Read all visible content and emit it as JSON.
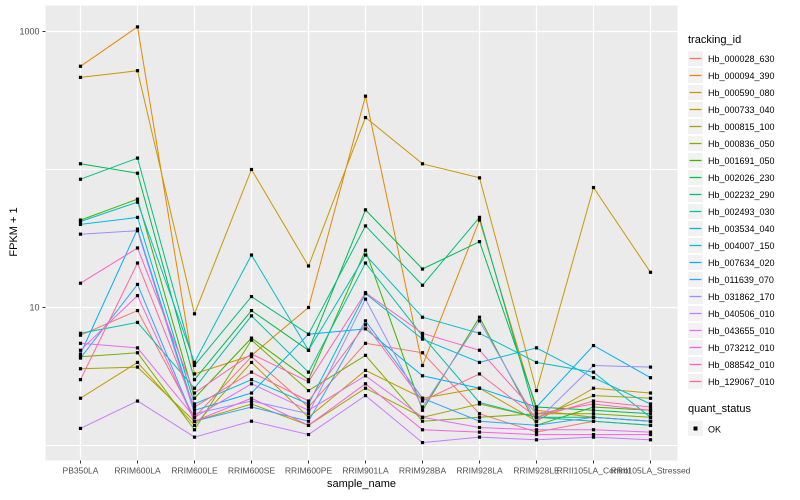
{
  "chart_data": {
    "type": "line",
    "title": "",
    "xlabel": "sample_name",
    "ylabel": "FPKM + 1",
    "y_scale": "log10",
    "ylim": [
      0.75,
      1600
    ],
    "y_major_ticks": [
      {
        "label": "1000",
        "value": 1000
      },
      {
        "label": "10",
        "value": 10
      }
    ],
    "y_unlabeled_gridlines": [
      100,
      1
    ],
    "grid": true,
    "legend_position": "right",
    "legend_title": "tracking_id",
    "quant_legend": {
      "title": "quant_status",
      "entries": [
        {
          "label": "OK",
          "marker": "black-square"
        }
      ]
    },
    "point_marker": "black-square",
    "categories": [
      "PB350LA",
      "RRIM600LA",
      "RRIM600LE",
      "RRIM600SE",
      "RRIM600PE",
      "RRIM901LA",
      "RRIM928BA",
      "RRIM928LA",
      "RRIM928LE",
      "RRII105LA_Control",
      "RRII105LA_Stressed"
    ],
    "series": [
      {
        "name": "Hb_000028_630",
        "color": "#F8766D",
        "values": [
          6.3,
          9.5,
          1.6,
          4.4,
          1.9,
          5.5,
          4.7,
          1.7,
          1.25,
          1.5,
          1.4
        ]
      },
      {
        "name": "Hb_000094_390",
        "color": "#E58700",
        "values": [
          560,
          1080,
          3.3,
          4.5,
          10,
          340,
          3.8,
          43,
          1.8,
          1.6,
          1.5
        ]
      },
      {
        "name": "Hb_000590_080",
        "color": "#C99800",
        "values": [
          465,
          520,
          9.0,
          100,
          20,
          238,
          110,
          87,
          2.5,
          74,
          18
        ]
      },
      {
        "name": "Hb_000733_040",
        "color": "#C09B00",
        "values": [
          2.2,
          4.0,
          1.4,
          4.0,
          1.6,
          3.5,
          2.2,
          2.6,
          1.5,
          2.6,
          2.4
        ]
      },
      {
        "name": "Hb_000815_100",
        "color": "#A3A500",
        "values": [
          3.6,
          3.7,
          1.5,
          2.0,
          1.4,
          2.6,
          1.6,
          2.0,
          1.6,
          2.3,
          2.2
        ]
      },
      {
        "name": "Hb_000836_050",
        "color": "#7CAE00",
        "values": [
          4.4,
          4.7,
          1.3,
          5.8,
          2.5,
          4.5,
          1.5,
          1.6,
          1.7,
          1.7,
          1.6
        ]
      },
      {
        "name": "Hb_001691_050",
        "color": "#39B600",
        "values": [
          43,
          61,
          2.2,
          6.0,
          3.0,
          26,
          1.8,
          8.5,
          1.4,
          1.9,
          1.8
        ]
      },
      {
        "name": "Hb_002026_230",
        "color": "#00BB4E",
        "values": [
          110,
          94,
          3.0,
          9.5,
          4.9,
          51,
          19,
          30,
          1.9,
          1.8,
          1.7
        ]
      },
      {
        "name": "Hb_002232_290",
        "color": "#00BF7D",
        "values": [
          85,
          121,
          3.8,
          12,
          6.4,
          39,
          14.5,
          45,
          1.6,
          1.6,
          1.5
        ]
      },
      {
        "name": "Hb_002493_030",
        "color": "#00C1A3",
        "values": [
          6.5,
          7.8,
          2.6,
          8.7,
          3.4,
          21,
          6.2,
          2.05,
          1.6,
          1.5,
          1.4
        ]
      },
      {
        "name": "Hb_003534_040",
        "color": "#00BFC4",
        "values": [
          42,
          58,
          4.0,
          24,
          4.9,
          24,
          8.5,
          6.5,
          4.0,
          3.4,
          1.6
        ]
      },
      {
        "name": "Hb_004007_150",
        "color": "#00BAE0",
        "values": [
          40,
          45,
          2.0,
          3.0,
          2.0,
          12.6,
          5.9,
          4.0,
          5.1,
          3.1,
          2.0
        ]
      },
      {
        "name": "Hb_007634_020",
        "color": "#00B0F6",
        "values": [
          4.6,
          37,
          1.8,
          2.4,
          6.4,
          7.0,
          3.2,
          2.6,
          1.9,
          5.3,
          3.1
        ]
      },
      {
        "name": "Hb_011639_070",
        "color": "#35A2FF",
        "values": [
          4.3,
          14.7,
          1.5,
          1.9,
          1.5,
          8.0,
          2.2,
          1.5,
          1.4,
          1.6,
          1.5
        ]
      },
      {
        "name": "Hb_031862_170",
        "color": "#9590FF",
        "values": [
          34,
          36,
          1.7,
          2.1,
          1.7,
          11.5,
          1.9,
          8.0,
          1.5,
          3.8,
          3.7
        ]
      },
      {
        "name": "Hb_040506_010",
        "color": "#C77CFF",
        "values": [
          1.33,
          2.1,
          1.15,
          1.5,
          1.2,
          2.3,
          1.05,
          1.15,
          1.1,
          1.15,
          1.1
        ]
      },
      {
        "name": "Hb_043655_010",
        "color": "#E76BF3",
        "values": [
          5.5,
          5.1,
          1.6,
          2.8,
          1.8,
          3.2,
          1.6,
          1.35,
          1.3,
          1.3,
          1.25
        ]
      },
      {
        "name": "Hb_073212_010",
        "color": "#FA62DB",
        "values": [
          4.9,
          12.2,
          1.5,
          2.2,
          1.4,
          2.8,
          1.3,
          1.25,
          1.2,
          1.2,
          1.2
        ]
      },
      {
        "name": "Hb_088542_010",
        "color": "#FF62BC",
        "values": [
          15,
          27,
          2.4,
          4.6,
          2.9,
          12.8,
          6.5,
          4.9,
          1.7,
          2.0,
          1.8
        ]
      },
      {
        "name": "Hb_129067_010",
        "color": "#FF6A98",
        "values": [
          3.0,
          21,
          1.9,
          3.4,
          2.1,
          7.5,
          2.1,
          3.3,
          1.6,
          2.1,
          1.9
        ]
      }
    ],
    "colors": {
      "panel_bg": "#EBEBEB",
      "grid": "#FFFFFF",
      "point": "#000000",
      "axis_text": "#4D4D4D",
      "title_text": "#000000",
      "legend_key_bg": "#F2F2F2",
      "background": "#FFFFFF"
    }
  }
}
